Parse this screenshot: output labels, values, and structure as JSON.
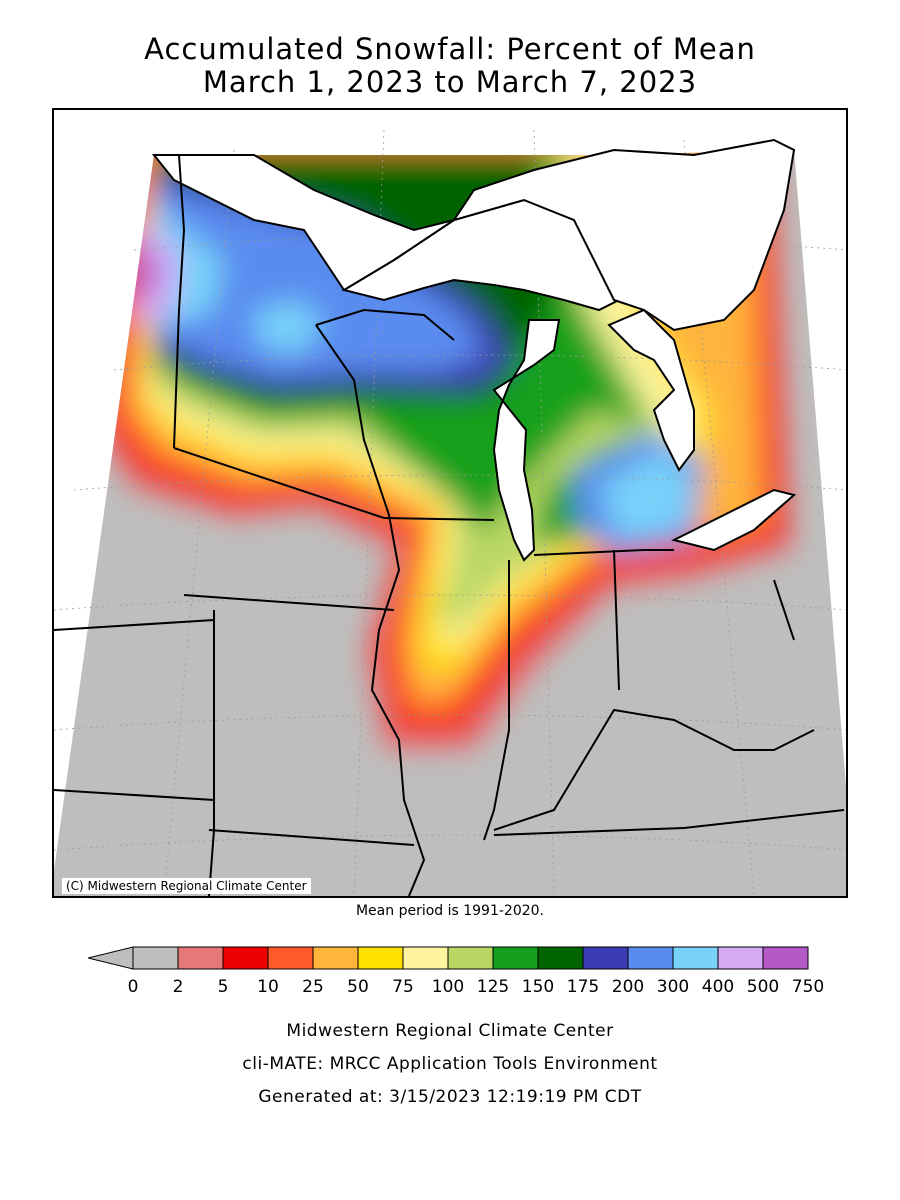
{
  "title": {
    "line1": "Accumulated Snowfall: Percent of Mean",
    "line2": "March 1, 2023 to March 7, 2023"
  },
  "map": {
    "copyright": "(C) Midwestern Regional Climate Center",
    "mean_period": "Mean period is 1991-2020."
  },
  "legend": {
    "bins": [
      {
        "label": "0",
        "color": "#bebebe"
      },
      {
        "label": "2",
        "color": "#e6787a"
      },
      {
        "label": "5",
        "color": "#ef0000"
      },
      {
        "label": "10",
        "color": "#ff5a28"
      },
      {
        "label": "25",
        "color": "#ffb43c"
      },
      {
        "label": "50",
        "color": "#ffe100"
      },
      {
        "label": "75",
        "color": "#fff5a0"
      },
      {
        "label": "100",
        "color": "#b9d764"
      },
      {
        "label": "125",
        "color": "#14a01e"
      },
      {
        "label": "150",
        "color": "#006400"
      },
      {
        "label": "175",
        "color": "#3c3cb4"
      },
      {
        "label": "200",
        "color": "#5a8cf0"
      },
      {
        "label": "300",
        "color": "#78d2fa"
      },
      {
        "label": "400",
        "color": "#d7aaf5"
      },
      {
        "label": "500",
        "color": "#b45ac8"
      },
      {
        "label": "750",
        "color": ""
      }
    ]
  },
  "footer": {
    "line1": "Midwestern Regional Climate Center",
    "line2": "cli-MATE: MRCC Application Tools Environment",
    "line3": "Generated at: 3/15/2023 12:19:19 PM CDT"
  }
}
